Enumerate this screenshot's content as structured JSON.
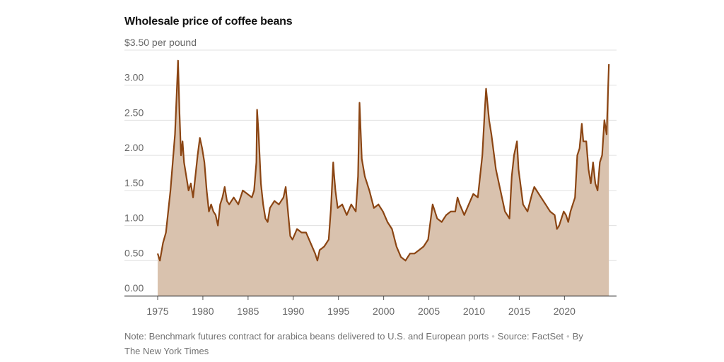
{
  "chart_data": {
    "type": "area",
    "title": "Wholesale price of coffee beans",
    "ylabel": "per pound",
    "y_ticks": [
      "0.00",
      "0.50",
      "1.00",
      "1.50",
      "2.00",
      "2.50",
      "3.00",
      "$3.50 per pound"
    ],
    "y_tick_values": [
      0,
      0.5,
      1,
      1.5,
      2,
      2.5,
      3,
      3.5
    ],
    "x_ticks": [
      "1975",
      "1980",
      "1985",
      "1990",
      "1995",
      "2000",
      "2005",
      "2010",
      "2015",
      "2020"
    ],
    "x_tick_values": [
      1975,
      1980,
      1985,
      1990,
      1995,
      2000,
      2005,
      2010,
      2015,
      2020
    ],
    "xlim": [
      1975,
      2024.9
    ],
    "ylim": [
      0,
      3.5
    ],
    "grid": true,
    "colors": {
      "line": "#8b4513",
      "fill": "#d9c2ae",
      "grid": "#e0e0e0",
      "axis": "#333333"
    },
    "series": [
      {
        "name": "",
        "x": [
          "1975-01",
          "1975-04",
          "1975-08",
          "1975-12",
          "1976-03",
          "1976-06",
          "1976-09",
          "1976-12",
          "1977-02",
          "1977-04",
          "1977-06",
          "1977-08",
          "1977-10",
          "1977-12",
          "1978-03",
          "1978-06",
          "1978-09",
          "1978-12",
          "1979-03",
          "1979-06",
          "1979-09",
          "1979-12",
          "1980-03",
          "1980-06",
          "1980-09",
          "1980-12",
          "1981-03",
          "1981-06",
          "1981-09",
          "1981-12",
          "1982-03",
          "1982-06",
          "1982-09",
          "1982-12",
          "1983-06",
          "1983-12",
          "1984-06",
          "1984-12",
          "1985-06",
          "1985-09",
          "1985-12",
          "1986-01",
          "1986-03",
          "1986-06",
          "1986-09",
          "1986-12",
          "1987-03",
          "1987-06",
          "1987-12",
          "1988-06",
          "1988-12",
          "1989-03",
          "1989-06",
          "1989-09",
          "1989-12",
          "1990-06",
          "1990-12",
          "1991-06",
          "1991-12",
          "1992-06",
          "1992-09",
          "1992-12",
          "1993-06",
          "1993-12",
          "1994-03",
          "1994-06",
          "1994-07",
          "1994-09",
          "1994-12",
          "1995-06",
          "1995-12",
          "1996-06",
          "1996-12",
          "1997-03",
          "1997-05",
          "1997-08",
          "1997-12",
          "1998-06",
          "1998-12",
          "1999-06",
          "1999-12",
          "2000-06",
          "2000-12",
          "2001-06",
          "2001-12",
          "2002-06",
          "2002-12",
          "2003-06",
          "2003-12",
          "2004-06",
          "2004-12",
          "2005-03",
          "2005-06",
          "2005-12",
          "2006-06",
          "2006-12",
          "2007-06",
          "2007-12",
          "2008-03",
          "2008-06",
          "2008-12",
          "2009-06",
          "2009-12",
          "2010-06",
          "2010-12",
          "2011-03",
          "2011-05",
          "2011-09",
          "2011-12",
          "2012-06",
          "2012-12",
          "2013-06",
          "2013-12",
          "2014-03",
          "2014-06",
          "2014-10",
          "2014-12",
          "2015-06",
          "2015-12",
          "2016-06",
          "2016-09",
          "2016-12",
          "2017-06",
          "2017-12",
          "2018-06",
          "2018-12",
          "2019-03",
          "2019-06",
          "2019-09",
          "2019-12",
          "2020-03",
          "2020-06",
          "2020-09",
          "2020-12",
          "2021-03",
          "2021-06",
          "2021-09",
          "2021-12",
          "2022-02",
          "2022-06",
          "2022-09",
          "2022-12",
          "2023-03",
          "2023-06",
          "2023-09",
          "2023-12",
          "2024-03",
          "2024-06",
          "2024-09",
          "2024-12"
        ],
        "values": [
          0.6,
          0.5,
          0.75,
          0.9,
          1.2,
          1.5,
          1.9,
          2.3,
          2.8,
          3.35,
          2.6,
          2.0,
          2.2,
          1.9,
          1.7,
          1.5,
          1.6,
          1.4,
          1.7,
          2.0,
          2.25,
          2.1,
          1.9,
          1.5,
          1.2,
          1.3,
          1.2,
          1.15,
          1.0,
          1.3,
          1.4,
          1.55,
          1.35,
          1.3,
          1.4,
          1.3,
          1.5,
          1.45,
          1.4,
          1.5,
          1.9,
          2.65,
          2.3,
          1.6,
          1.3,
          1.1,
          1.05,
          1.25,
          1.35,
          1.3,
          1.4,
          1.55,
          1.2,
          0.85,
          0.8,
          0.95,
          0.9,
          0.9,
          0.75,
          0.6,
          0.5,
          0.65,
          0.7,
          0.8,
          1.25,
          1.9,
          1.75,
          1.5,
          1.25,
          1.3,
          1.15,
          1.3,
          1.2,
          1.7,
          2.75,
          1.95,
          1.7,
          1.5,
          1.25,
          1.3,
          1.2,
          1.05,
          0.95,
          0.7,
          0.55,
          0.5,
          0.6,
          0.6,
          0.65,
          0.7,
          0.8,
          1.05,
          1.3,
          1.1,
          1.05,
          1.15,
          1.2,
          1.2,
          1.4,
          1.3,
          1.15,
          1.3,
          1.45,
          1.4,
          2.0,
          2.6,
          2.95,
          2.5,
          2.3,
          1.8,
          1.5,
          1.2,
          1.1,
          1.7,
          2.0,
          2.2,
          1.8,
          1.3,
          1.2,
          1.45,
          1.55,
          1.5,
          1.4,
          1.3,
          1.2,
          1.15,
          0.95,
          1.0,
          1.1,
          1.2,
          1.15,
          1.05,
          1.2,
          1.3,
          1.4,
          2.0,
          2.1,
          2.45,
          2.2,
          2.2,
          1.8,
          1.6,
          1.9,
          1.6,
          1.5,
          1.9,
          2.0,
          2.5,
          2.3,
          3.3
        ]
      }
    ]
  },
  "note": {
    "line1": "Note: Benchmark futures contract for arabica beans delivered to U.S. and European ports",
    "source_label": "Source:",
    "source": "FactSet",
    "byline": "By The New York Times",
    "separator": "•"
  }
}
